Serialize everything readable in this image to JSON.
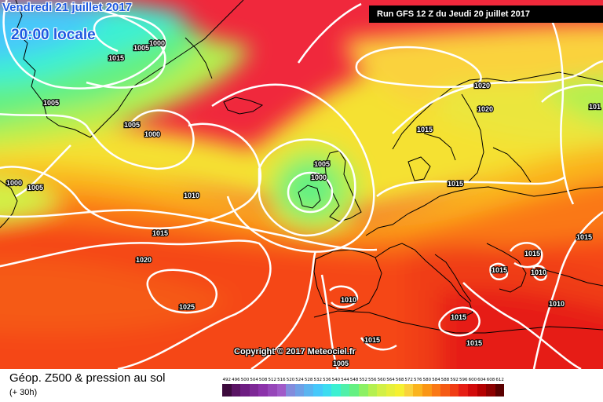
{
  "valid_date": "Vendredi 21 juillet 2017",
  "valid_time": "20:00 locale",
  "run_info": "Run GFS 12 Z du Jeudi 20 juillet 2017",
  "copyright": "Copyright © 2017 Meteociel.fr",
  "footer_title": "Géop. Z500 & pression au sol",
  "footer_subtitle": "(+ 30h)",
  "legend": [
    {
      "label": "492",
      "color": "#3c0a3c"
    },
    {
      "label": "496",
      "color": "#5a1464"
    },
    {
      "label": "500",
      "color": "#6e1e82"
    },
    {
      "label": "504",
      "color": "#7d2896"
    },
    {
      "label": "508",
      "color": "#8c32aa"
    },
    {
      "label": "512",
      "color": "#9646b9"
    },
    {
      "label": "516",
      "color": "#a05ac8"
    },
    {
      "label": "520",
      "color": "#828cdc"
    },
    {
      "label": "524",
      "color": "#6ea0e6"
    },
    {
      "label": "528",
      "color": "#5ab4f0"
    },
    {
      "label": "532",
      "color": "#46c8fa"
    },
    {
      "label": "536",
      "color": "#3cdcf0"
    },
    {
      "label": "540",
      "color": "#3cf0d2"
    },
    {
      "label": "544",
      "color": "#50f0aa"
    },
    {
      "label": "548",
      "color": "#64f082"
    },
    {
      "label": "552",
      "color": "#8cf064"
    },
    {
      "label": "556",
      "color": "#b4f050"
    },
    {
      "label": "560",
      "color": "#d2f046"
    },
    {
      "label": "564",
      "color": "#e6f03c"
    },
    {
      "label": "568",
      "color": "#f5f032"
    },
    {
      "label": "572",
      "color": "#fad23c"
    },
    {
      "label": "576",
      "color": "#fab41e"
    },
    {
      "label": "580",
      "color": "#fa9614"
    },
    {
      "label": "584",
      "color": "#fa7814"
    },
    {
      "label": "588",
      "color": "#f55a14"
    },
    {
      "label": "592",
      "color": "#f03c14"
    },
    {
      "label": "596",
      "color": "#e61e14"
    },
    {
      "label": "600",
      "color": "#d20a0a"
    },
    {
      "label": "604",
      "color": "#b40000"
    },
    {
      "label": "608",
      "color": "#8c0000"
    },
    {
      "label": "612",
      "color": "#5a0000"
    }
  ],
  "pressure_labels": [
    {
      "text": "1000"
    },
    {
      "text": "1005"
    },
    {
      "text": "1015"
    },
    {
      "text": "1005"
    },
    {
      "text": "1005"
    },
    {
      "text": "1000"
    },
    {
      "text": "1000"
    },
    {
      "text": "1005"
    },
    {
      "text": "1010"
    },
    {
      "text": "1015"
    },
    {
      "text": "1020"
    },
    {
      "text": "1025"
    },
    {
      "text": "1005"
    },
    {
      "text": "1000"
    },
    {
      "text": "1015"
    },
    {
      "text": "1020"
    },
    {
      "text": "1020"
    },
    {
      "text": "1015"
    },
    {
      "text": "1010"
    },
    {
      "text": "1010"
    },
    {
      "text": "1015"
    },
    {
      "text": "1015"
    },
    {
      "text": "1015"
    },
    {
      "text": "1015"
    },
    {
      "text": "1015"
    },
    {
      "text": "1010"
    },
    {
      "text": "1015"
    },
    {
      "text": "1005"
    },
    {
      "text": "101"
    }
  ]
}
